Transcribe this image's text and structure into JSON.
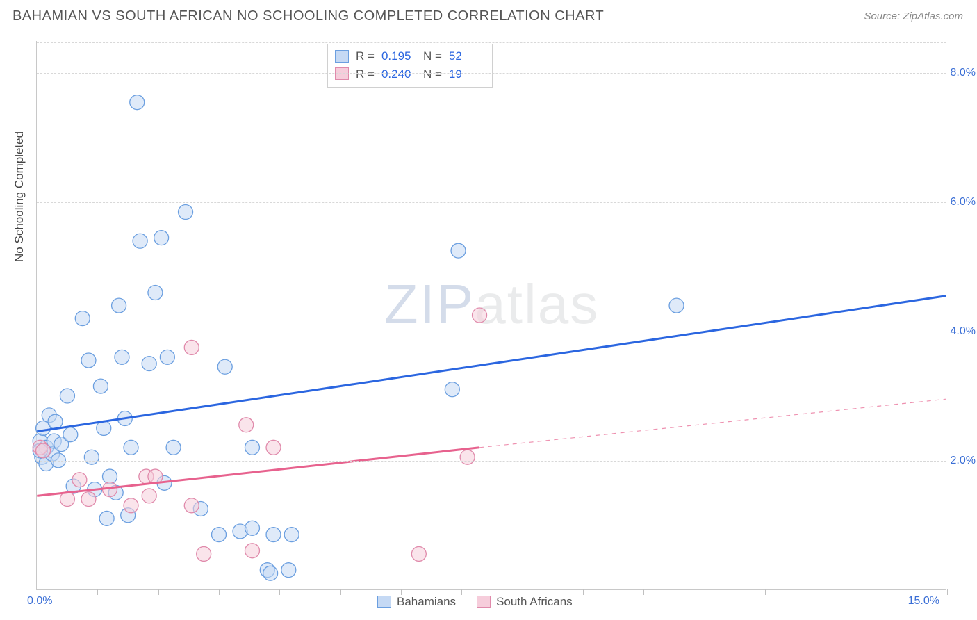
{
  "header": {
    "title": "BAHAMIAN VS SOUTH AFRICAN NO SCHOOLING COMPLETED CORRELATION CHART",
    "source": "Source: ZipAtlas.com"
  },
  "chart": {
    "type": "scatter",
    "y_axis_title": "No Schooling Completed",
    "xlim": [
      0,
      15
    ],
    "ylim": [
      0,
      8.5
    ],
    "x_tick_positions": [
      0,
      1,
      2,
      3,
      4,
      5,
      6,
      7,
      8,
      9,
      10,
      11,
      12,
      13,
      14,
      15
    ],
    "x_label_min": "0.0%",
    "x_label_max": "15.0%",
    "y_gridlines": [
      2,
      4,
      6,
      8
    ],
    "y_labels": [
      "2.0%",
      "4.0%",
      "6.0%",
      "8.0%"
    ],
    "background_color": "#ffffff",
    "grid_color": "#d8d8d8",
    "axis_color": "#c8c8c8",
    "label_color": "#3b6fd6",
    "title_color": "#555555",
    "marker_radius": 10.5,
    "marker_stroke_width": 1.3,
    "line_width": 3,
    "series": [
      {
        "name": "Bahamians",
        "fill": "#c5d9f4",
        "fill_opacity": 0.55,
        "stroke": "#6b9fe0",
        "trend_color": "#2b66e0",
        "trend_start": [
          0,
          2.45
        ],
        "trend_end": [
          15,
          4.55
        ],
        "points": [
          [
            0.05,
            2.3
          ],
          [
            0.08,
            2.05
          ],
          [
            0.1,
            2.5
          ],
          [
            0.15,
            2.2
          ],
          [
            0.15,
            1.95
          ],
          [
            0.2,
            2.7
          ],
          [
            0.25,
            2.1
          ],
          [
            0.28,
            2.3
          ],
          [
            0.3,
            2.6
          ],
          [
            0.35,
            2.0
          ],
          [
            0.4,
            2.25
          ],
          [
            0.5,
            3.0
          ],
          [
            0.55,
            2.4
          ],
          [
            0.6,
            1.6
          ],
          [
            0.75,
            4.2
          ],
          [
            0.85,
            3.55
          ],
          [
            0.9,
            2.05
          ],
          [
            0.95,
            1.55
          ],
          [
            1.05,
            3.15
          ],
          [
            1.1,
            2.5
          ],
          [
            1.15,
            1.1
          ],
          [
            1.2,
            1.75
          ],
          [
            1.3,
            1.5
          ],
          [
            1.35,
            4.4
          ],
          [
            1.4,
            3.6
          ],
          [
            1.45,
            2.65
          ],
          [
            1.5,
            1.15
          ],
          [
            1.55,
            2.2
          ],
          [
            1.65,
            7.55
          ],
          [
            1.7,
            5.4
          ],
          [
            1.85,
            3.5
          ],
          [
            1.95,
            4.6
          ],
          [
            2.05,
            5.45
          ],
          [
            2.1,
            1.65
          ],
          [
            2.15,
            3.6
          ],
          [
            2.25,
            2.2
          ],
          [
            2.45,
            5.85
          ],
          [
            2.7,
            1.25
          ],
          [
            3.0,
            0.85
          ],
          [
            3.1,
            3.45
          ],
          [
            3.35,
            0.9
          ],
          [
            3.55,
            2.2
          ],
          [
            3.55,
            0.95
          ],
          [
            3.8,
            0.3
          ],
          [
            3.85,
            0.25
          ],
          [
            3.9,
            0.85
          ],
          [
            4.15,
            0.3
          ],
          [
            4.2,
            0.85
          ],
          [
            6.85,
            3.1
          ],
          [
            6.95,
            5.25
          ],
          [
            10.55,
            4.4
          ],
          [
            0.05,
            2.15
          ]
        ]
      },
      {
        "name": "South Africans",
        "fill": "#f6cddb",
        "fill_opacity": 0.55,
        "stroke": "#e08aab",
        "trend_color": "#e7628e",
        "trend_start": [
          0,
          1.45
        ],
        "trend_end": [
          7.3,
          2.2
        ],
        "trend_dash_end": [
          15,
          2.95
        ],
        "points": [
          [
            0.05,
            2.2
          ],
          [
            0.1,
            2.15
          ],
          [
            0.5,
            1.4
          ],
          [
            0.7,
            1.7
          ],
          [
            0.85,
            1.4
          ],
          [
            1.2,
            1.55
          ],
          [
            1.55,
            1.3
          ],
          [
            1.8,
            1.75
          ],
          [
            1.85,
            1.45
          ],
          [
            1.95,
            1.75
          ],
          [
            2.55,
            3.75
          ],
          [
            2.55,
            1.3
          ],
          [
            2.75,
            0.55
          ],
          [
            3.9,
            2.2
          ],
          [
            3.45,
            2.55
          ],
          [
            3.55,
            0.6
          ],
          [
            6.3,
            0.55
          ],
          [
            7.1,
            2.05
          ],
          [
            7.3,
            4.25
          ]
        ]
      }
    ],
    "stats_legend": [
      {
        "r_label": "R =",
        "r": "0.195",
        "n_label": "N =",
        "n": "52"
      },
      {
        "r_label": "R =",
        "r": "0.240",
        "n_label": "N =",
        "n": "19"
      }
    ],
    "bottom_legend": [
      {
        "label": "Bahamians"
      },
      {
        "label": "South Africans"
      }
    ],
    "watermark": {
      "zip": "ZIP",
      "atlas": "atlas"
    }
  }
}
